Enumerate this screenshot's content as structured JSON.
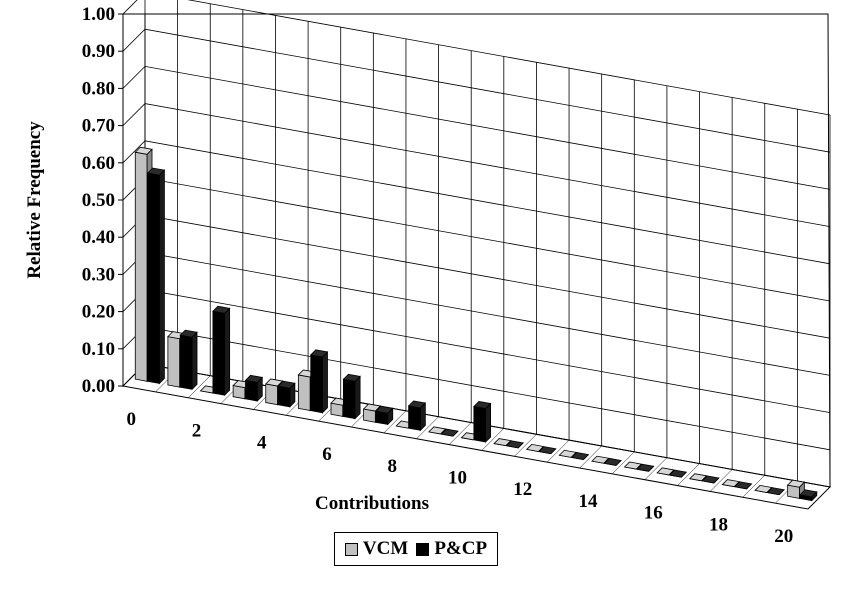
{
  "chart_data": {
    "type": "bar",
    "ylabel": "Relative Frequency",
    "xlabel": "Contributions",
    "ylim": [
      0,
      1
    ],
    "y_ticks": [
      "0.00",
      "0.10",
      "0.20",
      "0.30",
      "0.40",
      "0.50",
      "0.60",
      "0.70",
      "0.80",
      "0.90",
      "1.00"
    ],
    "x_tick_labels": [
      "0",
      "2",
      "4",
      "6",
      "8",
      "10",
      "12",
      "14",
      "16",
      "18",
      "20"
    ],
    "categories": [
      "0",
      "1",
      "2",
      "3",
      "4",
      "5",
      "6",
      "7",
      "8",
      "9",
      "10",
      "11",
      "12",
      "13",
      "14",
      "15",
      "16",
      "17",
      "18",
      "19",
      "20"
    ],
    "series": [
      {
        "name": "VCM",
        "color": "#c0c0c0",
        "values": [
          0.61,
          0.13,
          0.0,
          0.03,
          0.05,
          0.09,
          0.03,
          0.03,
          0.0,
          0.0,
          0.0,
          0.0,
          0.0,
          0.0,
          0.0,
          0.0,
          0.0,
          0.0,
          0.0,
          0.0,
          0.03
        ]
      },
      {
        "name": "P&CP",
        "color": "#000000",
        "values": [
          0.56,
          0.14,
          0.22,
          0.05,
          0.05,
          0.15,
          0.1,
          0.03,
          0.06,
          0.0,
          0.09,
          0.0,
          0.0,
          0.0,
          0.0,
          0.0,
          0.0,
          0.0,
          0.0,
          0.0,
          0.01
        ]
      }
    ],
    "grid": true,
    "legend_position": "bottom-center"
  }
}
